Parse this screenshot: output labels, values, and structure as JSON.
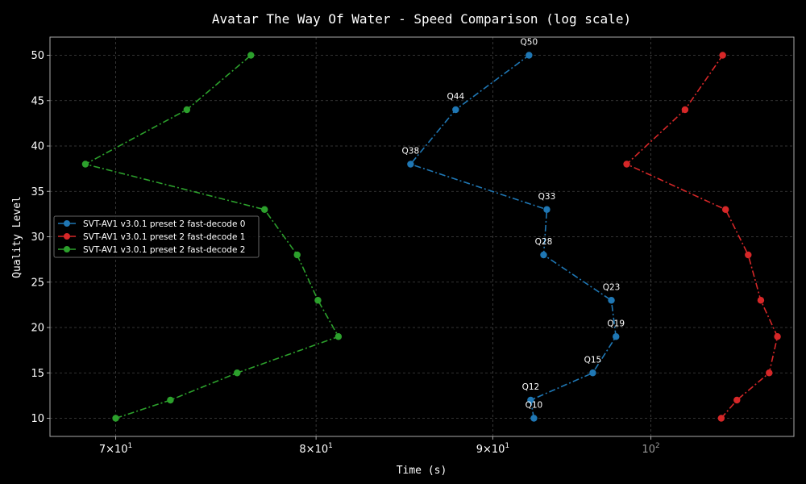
{
  "chart_data": {
    "type": "line",
    "title": "Avatar The Way Of Water - Speed Comparison (log scale)",
    "xlabel": "Time (s)",
    "ylabel": "Quality Level",
    "x_scale": "log",
    "xlim": [
      67,
      110
    ],
    "ylim": [
      8,
      52
    ],
    "grid": true,
    "legend_position": "center-left",
    "x_ticks": [
      {
        "value": 70,
        "base": "7",
        "exp": "1",
        "style": "major"
      },
      {
        "value": 80,
        "base": "8",
        "exp": "1",
        "style": "major"
      },
      {
        "value": 90,
        "base": "9",
        "exp": "1",
        "style": "major"
      },
      {
        "value": 100,
        "base": "10",
        "exp": "2",
        "style": "dim"
      }
    ],
    "y_ticks": [
      10,
      15,
      20,
      25,
      30,
      35,
      40,
      45,
      50
    ],
    "series": [
      {
        "name": "SVT-AV1 v3.0.1 preset 2 fast-decode 0",
        "color": "#1f77b4",
        "points": [
          {
            "q": 10,
            "t": 92.5,
            "label": "Q10"
          },
          {
            "q": 12,
            "t": 92.3,
            "label": "Q12"
          },
          {
            "q": 15,
            "t": 96.2,
            "label": "Q15"
          },
          {
            "q": 19,
            "t": 97.7,
            "label": "Q19"
          },
          {
            "q": 23,
            "t": 97.4,
            "label": "Q23"
          },
          {
            "q": 28,
            "t": 93.1,
            "label": "Q28"
          },
          {
            "q": 33,
            "t": 93.3,
            "label": "Q33"
          },
          {
            "q": 38,
            "t": 85.2,
            "label": "Q38"
          },
          {
            "q": 44,
            "t": 87.8,
            "label": "Q44"
          },
          {
            "q": 50,
            "t": 92.2,
            "label": "Q50"
          }
        ]
      },
      {
        "name": "SVT-AV1 v3.0.1 preset 2 fast-decode 1",
        "color": "#d62728",
        "points": [
          {
            "q": 10,
            "t": 104.8
          },
          {
            "q": 12,
            "t": 105.9
          },
          {
            "q": 15,
            "t": 108.2
          },
          {
            "q": 19,
            "t": 108.8
          },
          {
            "q": 23,
            "t": 107.6
          },
          {
            "q": 28,
            "t": 106.7
          },
          {
            "q": 33,
            "t": 105.1
          },
          {
            "q": 38,
            "t": 98.4
          },
          {
            "q": 44,
            "t": 102.3
          },
          {
            "q": 50,
            "t": 104.9
          }
        ]
      },
      {
        "name": "SVT-AV1 v3.0.1 preset 2 fast-decode 2",
        "color": "#2ca02c",
        "points": [
          {
            "q": 10,
            "t": 70.0
          },
          {
            "q": 12,
            "t": 72.6
          },
          {
            "q": 15,
            "t": 75.9
          },
          {
            "q": 19,
            "t": 81.2
          },
          {
            "q": 23,
            "t": 80.1
          },
          {
            "q": 28,
            "t": 79.0
          },
          {
            "q": 33,
            "t": 77.3
          },
          {
            "q": 38,
            "t": 68.6
          },
          {
            "q": 44,
            "t": 73.4
          },
          {
            "q": 50,
            "t": 76.6
          }
        ]
      }
    ]
  }
}
